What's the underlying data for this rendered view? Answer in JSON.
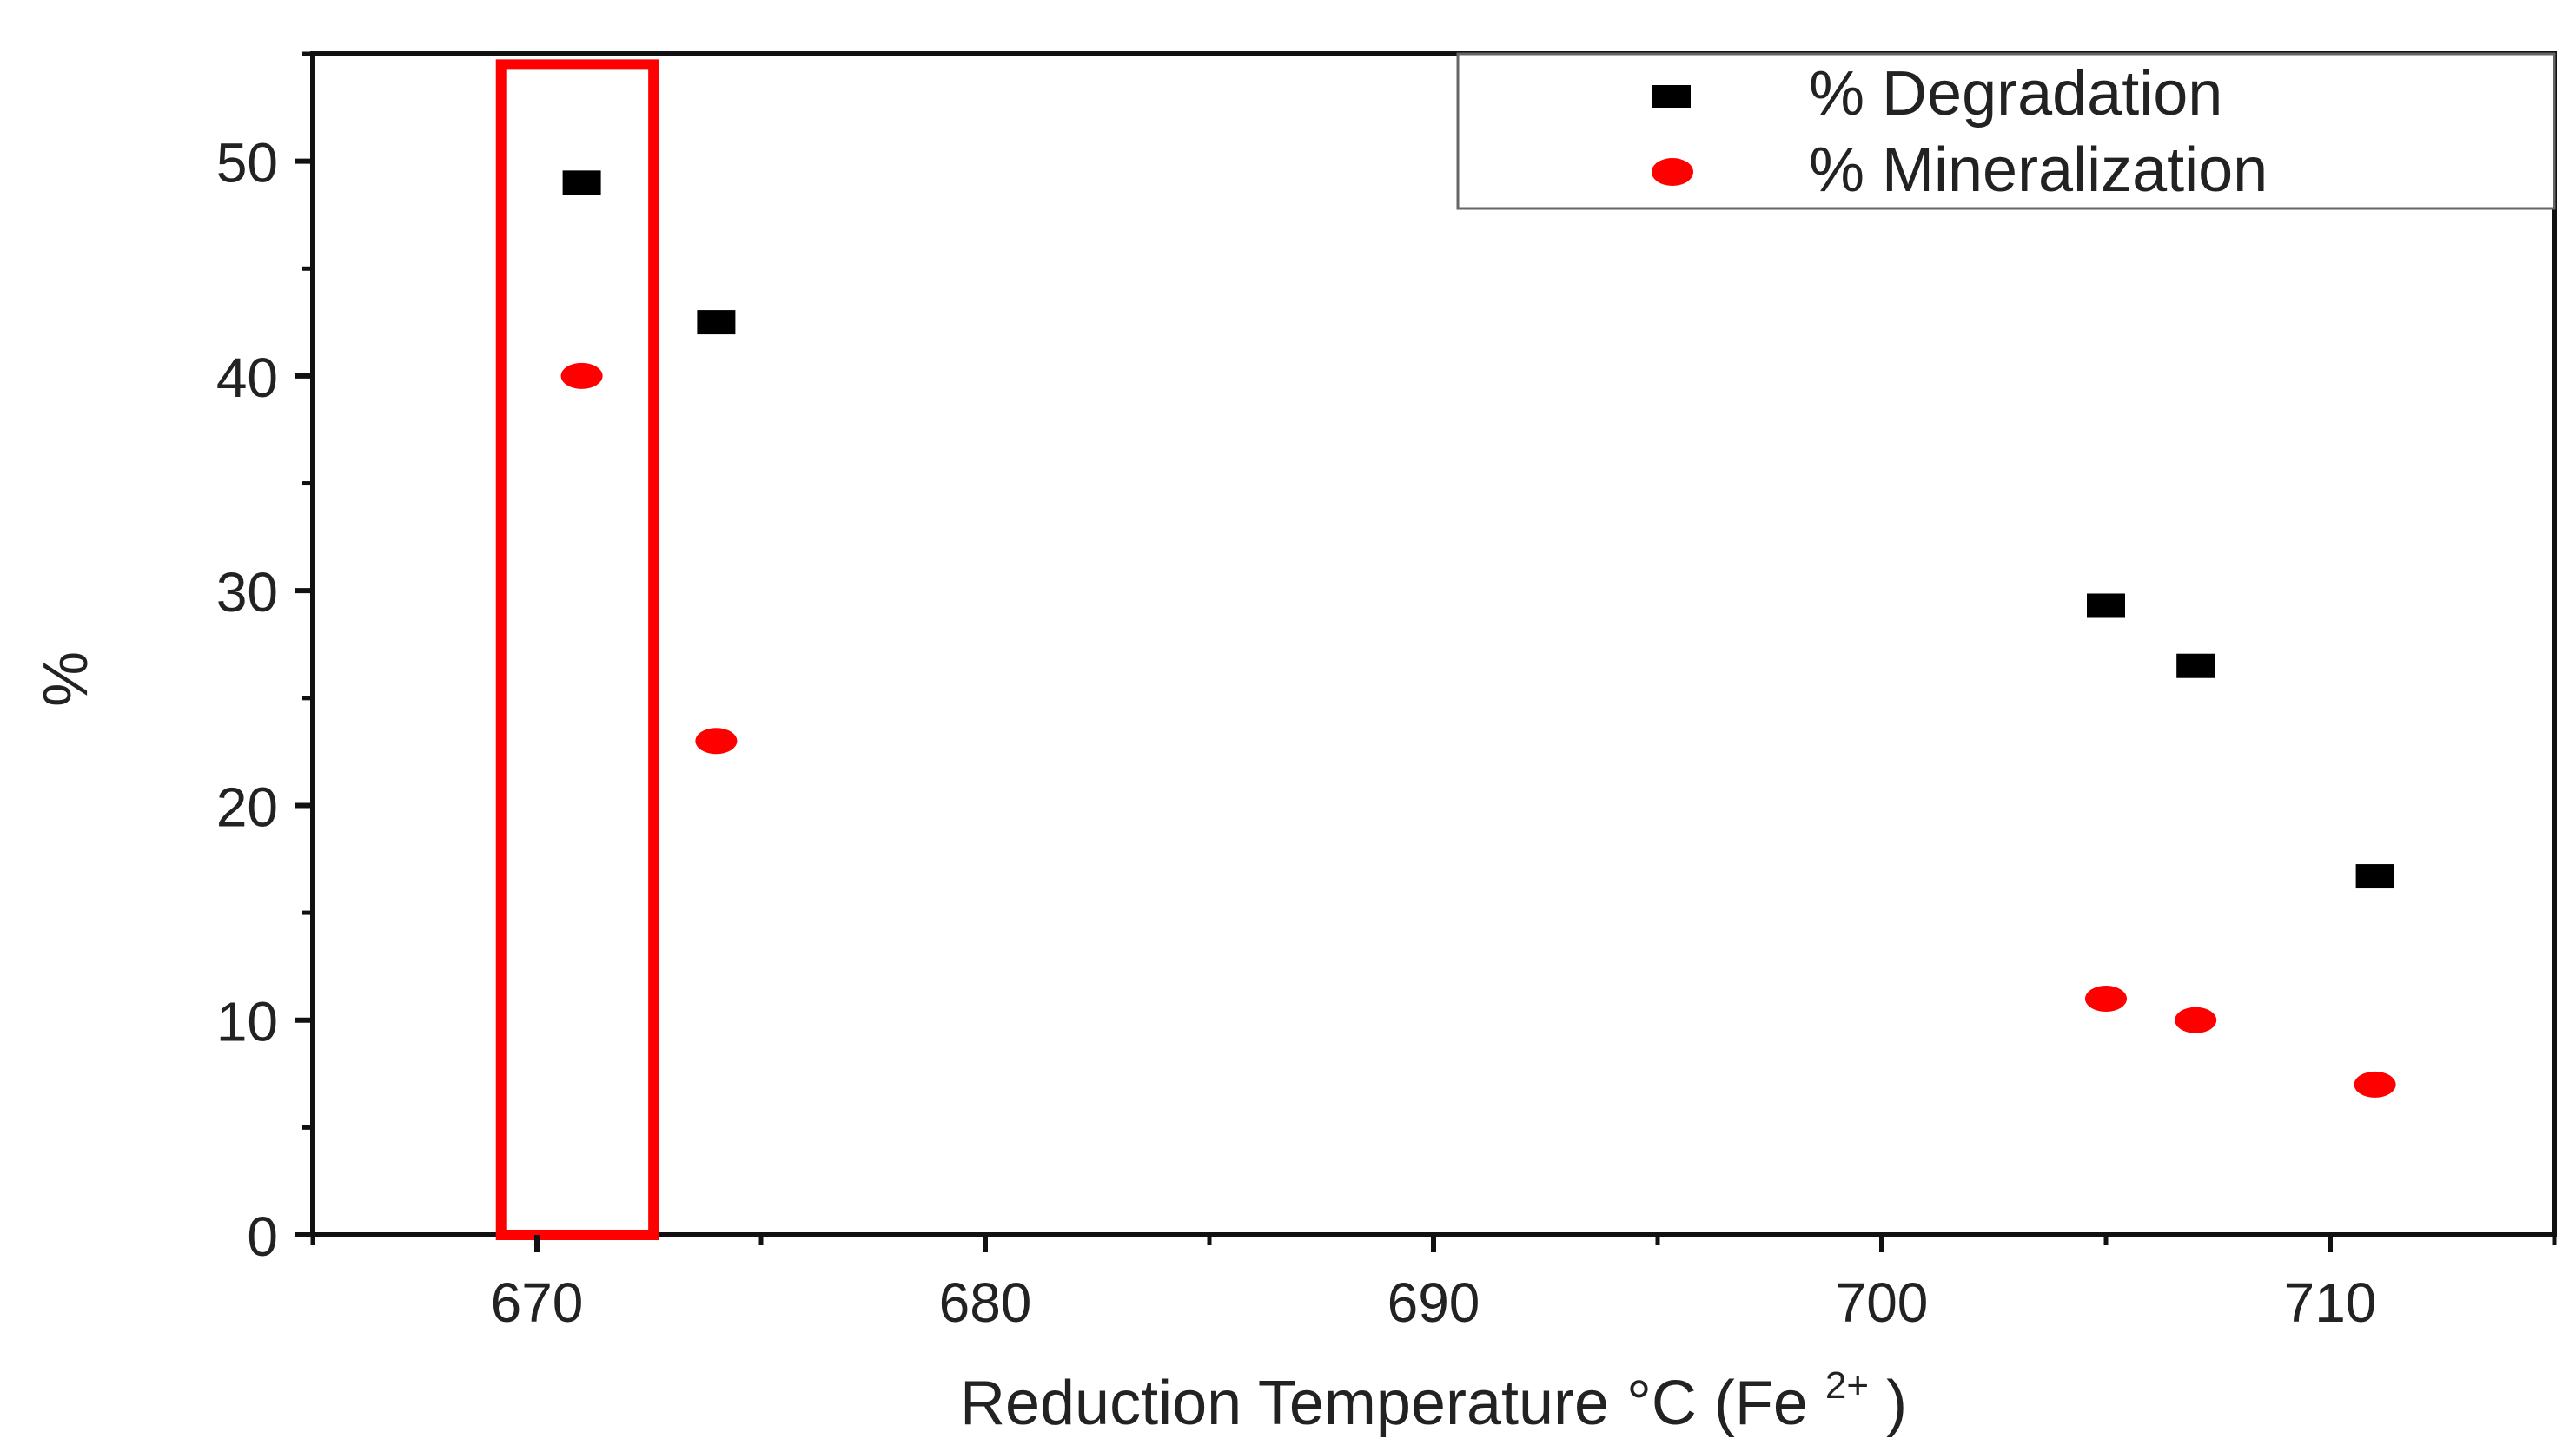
{
  "chart_data": {
    "type": "scatter",
    "title": "",
    "xlabel": "Reduction Temperature °C (Fe",
    "xlabel_superscript": "2+",
    "xlabel_suffix": ")",
    "ylabel": "%",
    "xlim": [
      665,
      715
    ],
    "ylim": [
      0,
      55
    ],
    "xticks": [
      670,
      680,
      690,
      700,
      710
    ],
    "yticks": [
      0,
      10,
      20,
      30,
      40,
      50
    ],
    "grid": false,
    "legend_position": "top-right",
    "series": [
      {
        "name": "% Degradation",
        "marker": "square",
        "color": "#000000",
        "x": [
          671,
          674,
          705,
          707,
          711
        ],
        "y": [
          49,
          42.5,
          29.3,
          26.5,
          16.7
        ]
      },
      {
        "name": "% Mineralization",
        "marker": "circle",
        "color": "#ff0000",
        "x": [
          671,
          674,
          705,
          707,
          711
        ],
        "y": [
          40,
          23,
          11,
          10,
          7
        ]
      }
    ],
    "highlight": {
      "x_range": [
        669.2,
        672.6
      ],
      "y_range": [
        0,
        54.5
      ],
      "color": "#ff0000"
    }
  }
}
